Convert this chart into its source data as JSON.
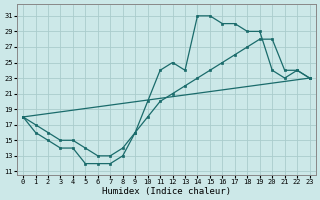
{
  "xlabel": "Humidex (Indice chaleur)",
  "bg_color": "#cce8e8",
  "grid_color": "#aacccc",
  "line_color": "#1a6b6b",
  "xlim": [
    -0.5,
    23.5
  ],
  "ylim": [
    10.5,
    32.5
  ],
  "yticks": [
    11,
    13,
    15,
    17,
    19,
    21,
    23,
    25,
    27,
    29,
    31
  ],
  "xticks": [
    0,
    1,
    2,
    3,
    4,
    5,
    6,
    7,
    8,
    9,
    10,
    11,
    12,
    13,
    14,
    15,
    16,
    17,
    18,
    19,
    20,
    21,
    22,
    23
  ],
  "line1_x": [
    0,
    1,
    2,
    3,
    4,
    5,
    6,
    7,
    8,
    9,
    10,
    11,
    12,
    13,
    14,
    15,
    16,
    17,
    18,
    19,
    20,
    21,
    22,
    23
  ],
  "line1_y": [
    18,
    16,
    15,
    14,
    14,
    12,
    12,
    12,
    13,
    16,
    20,
    24,
    25,
    24,
    31,
    31,
    30,
    30,
    29,
    29,
    24,
    23,
    24,
    23
  ],
  "line2_x": [
    0,
    1,
    2,
    3,
    4,
    5,
    6,
    7,
    8,
    9,
    10,
    11,
    12,
    13,
    14,
    15,
    16,
    17,
    18,
    19,
    20,
    21,
    22,
    23
  ],
  "line2_y": [
    18,
    17,
    16,
    15,
    15,
    14,
    13,
    13,
    14,
    16,
    18,
    20,
    21,
    22,
    23,
    24,
    25,
    26,
    27,
    28,
    28,
    24,
    24,
    23
  ],
  "line3_x": [
    0,
    23
  ],
  "line3_y": [
    18,
    23
  ]
}
